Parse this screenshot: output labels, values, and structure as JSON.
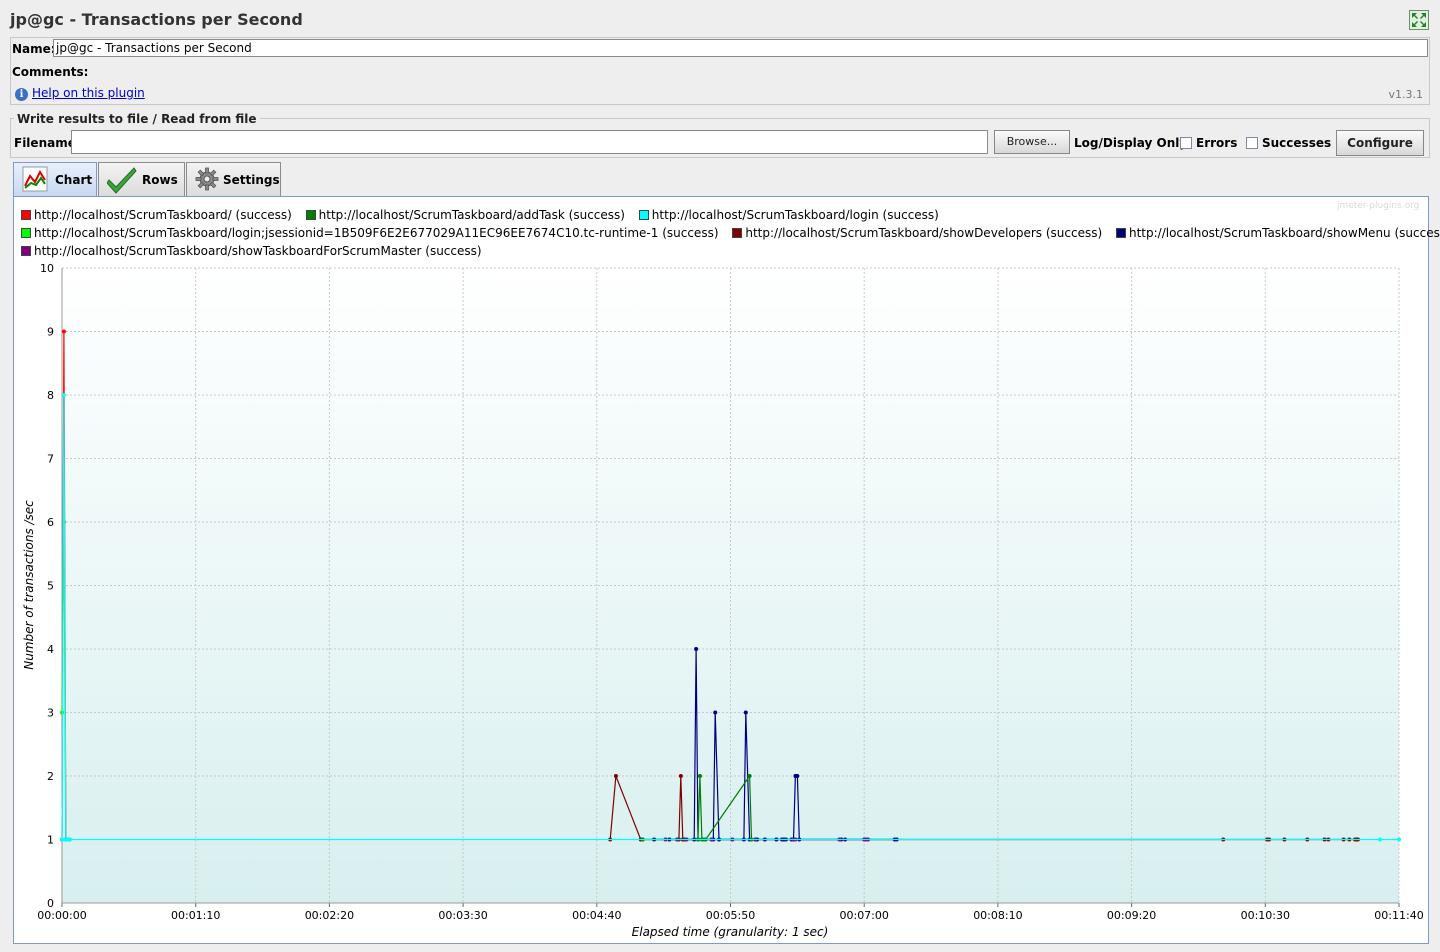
{
  "window": {
    "title": "jp@gc - Transactions per Second"
  },
  "name_panel": {
    "name_label": "Name:",
    "name_value": "jp@gc - Transactions per Second",
    "comments_label": "Comments:",
    "help_link": "Help on this plugin",
    "version": "v1.3.1"
  },
  "file_panel": {
    "legend": "Write results to file / Read from file",
    "filename_label": "Filename",
    "filename_value": "",
    "browse_label": "Browse...",
    "log_display_label": "Log/Display Only:",
    "errors_label": "Errors",
    "successes_label": "Successes",
    "configure_label": "Configure"
  },
  "tabs": [
    {
      "label": "Chart",
      "icon": "chart-icon",
      "active": true
    },
    {
      "label": "Rows",
      "icon": "checkmark-icon",
      "active": false
    },
    {
      "label": "Settings",
      "icon": "gear-icon",
      "active": false
    }
  ],
  "watermark": "jmeter-plugins.org",
  "chart_data": {
    "type": "line",
    "xlabel": "Elapsed time (granularity: 1 sec)",
    "ylabel": "Number of transactions /sec",
    "ylim": [
      0,
      10
    ],
    "yticks": [
      "0",
      "1",
      "2",
      "3",
      "4",
      "5",
      "6",
      "7",
      "8",
      "9",
      "10"
    ],
    "xlim_seconds": [
      0,
      700
    ],
    "xticks": [
      "00:00:00",
      "00:01:10",
      "00:02:20",
      "00:03:30",
      "00:04:40",
      "00:05:50",
      "00:07:00",
      "00:08:10",
      "00:09:20",
      "00:10:30",
      "00:11:40"
    ],
    "grid": true,
    "legend_position": "top",
    "series": [
      {
        "name": "http://localhost/ScrumTaskboard/ (success)",
        "color": "#ff0000",
        "x": [
          0,
          1,
          2,
          3,
          4
        ],
        "y": [
          1,
          9,
          1,
          1,
          1
        ]
      },
      {
        "name": "http://localhost/ScrumTaskboard/addTask (success)",
        "color": "#007f00",
        "x": [
          304,
          333,
          334,
          335,
          336,
          337,
          360,
          361
        ],
        "y": [
          1,
          1,
          2,
          1,
          1,
          1,
          2,
          1
        ]
      },
      {
        "name": "http://localhost/ScrumTaskboard/login (success)",
        "color": "#00ffff",
        "x": [
          0,
          1,
          2,
          3,
          4,
          690,
          700
        ],
        "y": [
          1,
          8,
          1,
          1,
          1,
          1,
          1
        ]
      },
      {
        "name": "http://localhost/ScrumTaskboard/login;jsessionid=1B509F6E2E677029A11EC96EE7674C10.tc-runtime-1 (success)",
        "color": "#00ff00",
        "x": [
          0,
          1,
          2,
          3,
          4
        ],
        "y": [
          3,
          6,
          1,
          1,
          1
        ]
      },
      {
        "name": "http://localhost/ScrumTaskboard/showDevelopers (success)",
        "color": "#7f0000",
        "x": [
          287,
          290,
          303,
          304,
          323,
          324,
          325,
          325.5,
          326,
          608,
          631,
          632,
          640,
          652,
          661,
          663,
          671,
          674,
          677,
          677.5,
          678,
          678.5
        ],
        "y": [
          1,
          2,
          1,
          1,
          1,
          2,
          1,
          1,
          1,
          1,
          1,
          1,
          1,
          1,
          1,
          1,
          1,
          1,
          1,
          1,
          1,
          1
        ]
      },
      {
        "name": "http://localhost/ScrumTaskboard/showMenu (success)",
        "color": "#00007f",
        "x": [
          310,
          318,
          331,
          332,
          333,
          341,
          342,
          344,
          357,
          358,
          360,
          363,
          364,
          368,
          374,
          377,
          378,
          379,
          382,
          383,
          384,
          385,
          386,
          408,
          410,
          436,
          437
        ],
        "y": [
          1,
          1,
          1,
          4,
          1,
          1,
          3,
          1,
          1,
          3,
          1,
          1,
          1,
          1,
          1,
          1,
          1,
          1,
          1,
          1,
          2,
          2,
          1,
          1,
          1,
          1,
          1
        ]
      },
      {
        "name": "http://localhost/ScrumTaskboard/showTaskboardForScrumMaster (success)",
        "color": "#7f007f",
        "x": [
          316,
          322,
          327,
          340,
          351,
          363,
          383,
          384,
          407,
          420,
          421,
          422
        ],
        "y": [
          1,
          1,
          1,
          1,
          1,
          1,
          1,
          1,
          1,
          1,
          1,
          1
        ]
      }
    ]
  }
}
